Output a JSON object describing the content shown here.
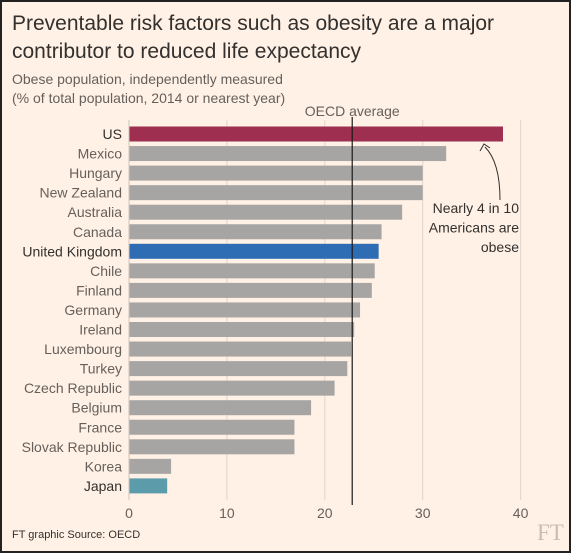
{
  "title": "Preventable risk factors such as obesity are a major contributor to reduced life expectancy",
  "subtitle_line1": "Obese population, independently measured",
  "subtitle_line2": "(% of total population, 2014 or nearest year)",
  "footer": "FT graphic  Source: OECD",
  "logo": "FT",
  "colors": {
    "background": "#fff1e5",
    "bar_default": "#a7a5a4",
    "bar_us": "#9e2f50",
    "bar_uk": "#2e6db4",
    "bar_japan": "#5c9ba9",
    "text": "#33302e",
    "axis_text": "#66605c",
    "reference_line": "#1a1a1a"
  },
  "chart_data": {
    "type": "bar",
    "orientation": "horizontal",
    "xlim": [
      0,
      40
    ],
    "x_ticks": [
      0,
      10,
      20,
      30,
      40
    ],
    "grid": true,
    "categories": [
      "US",
      "Mexico",
      "Hungary",
      "New Zealand",
      "Australia",
      "Canada",
      "United Kingdom",
      "Chile",
      "Finland",
      "Germany",
      "Ireland",
      "Luxembourg",
      "Turkey",
      "Czech Republic",
      "Belgium",
      "France",
      "Slovak Republic",
      "Korea",
      "Japan"
    ],
    "values": [
      38.2,
      32.4,
      30.0,
      30.0,
      27.9,
      25.8,
      25.5,
      25.1,
      24.8,
      23.6,
      23.0,
      22.7,
      22.3,
      21.0,
      18.6,
      16.9,
      16.9,
      4.3,
      3.9
    ],
    "highlighted": {
      "US": "bar_us",
      "United Kingdom": "bar_uk",
      "Japan": "bar_japan"
    },
    "bold_labels": [
      "US",
      "United Kingdom",
      "Japan"
    ],
    "reference_line": {
      "label": "OECD average",
      "value": 22.8
    },
    "annotation": {
      "lines": [
        "Nearly 4 in 10",
        "Americans are",
        "obese"
      ],
      "points_to": "US"
    }
  }
}
